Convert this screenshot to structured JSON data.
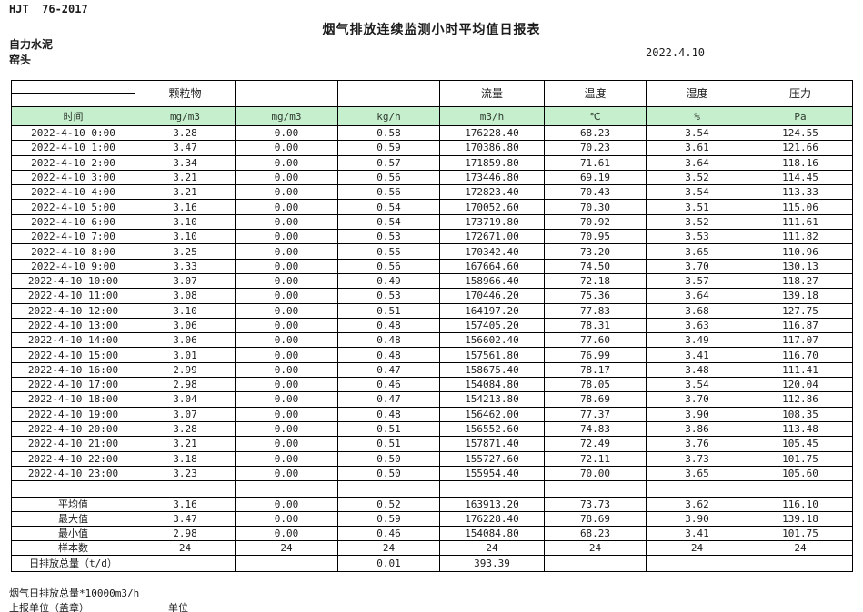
{
  "page": {
    "doc_code": "HJT  76-2017",
    "title": "烟气排放连续监测小时平均值日报表",
    "company": "自力水泥",
    "monitor_point": "窑头",
    "date": "2022.4.10"
  },
  "colors": {
    "header_green": "#c6efce",
    "border": "#000000"
  },
  "table": {
    "group_headers": [
      "",
      "颗粒物",
      "",
      "",
      "流量",
      "温度",
      "湿度",
      "压力"
    ],
    "unit_row": [
      "时间",
      "mg/m3",
      "mg/m3",
      "kg/h",
      "m3/h",
      "℃",
      "%",
      "Pa"
    ],
    "rows": [
      [
        "2022-4-10 0:00",
        "3.28",
        "0.00",
        "0.58",
        "176228.40",
        "68.23",
        "3.54",
        "124.55"
      ],
      [
        "2022-4-10 1:00",
        "3.47",
        "0.00",
        "0.59",
        "170386.80",
        "70.23",
        "3.61",
        "121.66"
      ],
      [
        "2022-4-10 2:00",
        "3.34",
        "0.00",
        "0.57",
        "171859.80",
        "71.61",
        "3.64",
        "118.16"
      ],
      [
        "2022-4-10 3:00",
        "3.21",
        "0.00",
        "0.56",
        "173446.80",
        "69.19",
        "3.52",
        "114.45"
      ],
      [
        "2022-4-10 4:00",
        "3.21",
        "0.00",
        "0.56",
        "172823.40",
        "70.43",
        "3.54",
        "113.33"
      ],
      [
        "2022-4-10 5:00",
        "3.16",
        "0.00",
        "0.54",
        "170052.60",
        "70.30",
        "3.51",
        "115.06"
      ],
      [
        "2022-4-10 6:00",
        "3.10",
        "0.00",
        "0.54",
        "173719.80",
        "70.92",
        "3.52",
        "111.61"
      ],
      [
        "2022-4-10 7:00",
        "3.10",
        "0.00",
        "0.53",
        "172671.00",
        "70.95",
        "3.53",
        "111.82"
      ],
      [
        "2022-4-10 8:00",
        "3.25",
        "0.00",
        "0.55",
        "170342.40",
        "73.20",
        "3.65",
        "110.96"
      ],
      [
        "2022-4-10 9:00",
        "3.33",
        "0.00",
        "0.56",
        "167664.60",
        "74.50",
        "3.70",
        "130.13"
      ],
      [
        "2022-4-10 10:00",
        "3.07",
        "0.00",
        "0.49",
        "158966.40",
        "72.18",
        "3.57",
        "118.27"
      ],
      [
        "2022-4-10 11:00",
        "3.08",
        "0.00",
        "0.53",
        "170446.20",
        "75.36",
        "3.64",
        "139.18"
      ],
      [
        "2022-4-10 12:00",
        "3.10",
        "0.00",
        "0.51",
        "164197.20",
        "77.83",
        "3.68",
        "127.75"
      ],
      [
        "2022-4-10 13:00",
        "3.06",
        "0.00",
        "0.48",
        "157405.20",
        "78.31",
        "3.63",
        "116.87"
      ],
      [
        "2022-4-10 14:00",
        "3.06",
        "0.00",
        "0.48",
        "156602.40",
        "77.60",
        "3.49",
        "117.07"
      ],
      [
        "2022-4-10 15:00",
        "3.01",
        "0.00",
        "0.48",
        "157561.80",
        "76.99",
        "3.41",
        "116.70"
      ],
      [
        "2022-4-10 16:00",
        "2.99",
        "0.00",
        "0.47",
        "158675.40",
        "78.17",
        "3.48",
        "111.41"
      ],
      [
        "2022-4-10 17:00",
        "2.98",
        "0.00",
        "0.46",
        "154084.80",
        "78.05",
        "3.54",
        "120.04"
      ],
      [
        "2022-4-10 18:00",
        "3.04",
        "0.00",
        "0.47",
        "154213.80",
        "78.69",
        "3.70",
        "112.86"
      ],
      [
        "2022-4-10 19:00",
        "3.07",
        "0.00",
        "0.48",
        "156462.00",
        "77.37",
        "3.90",
        "108.35"
      ],
      [
        "2022-4-10 20:00",
        "3.28",
        "0.00",
        "0.51",
        "156552.60",
        "74.83",
        "3.86",
        "113.48"
      ],
      [
        "2022-4-10 21:00",
        "3.21",
        "0.00",
        "0.51",
        "157871.40",
        "72.49",
        "3.76",
        "105.45"
      ],
      [
        "2022-4-10 22:00",
        "3.18",
        "0.00",
        "0.50",
        "155727.60",
        "72.11",
        "3.73",
        "101.75"
      ],
      [
        "2022-4-10 23:00",
        "3.23",
        "0.00",
        "0.50",
        "155954.40",
        "70.00",
        "3.65",
        "105.60"
      ]
    ],
    "summary": [
      {
        "label": "平均值",
        "values": [
          "3.16",
          "0.00",
          "0.52",
          "163913.20",
          "73.73",
          "3.62",
          "116.10"
        ]
      },
      {
        "label": "最大值",
        "values": [
          "3.47",
          "0.00",
          "0.59",
          "176228.40",
          "78.69",
          "3.90",
          "139.18"
        ]
      },
      {
        "label": "最小值",
        "values": [
          "2.98",
          "0.00",
          "0.46",
          "154084.80",
          "68.23",
          "3.41",
          "101.75"
        ]
      },
      {
        "label": "样本数",
        "values": [
          "24",
          "24",
          "24",
          "24",
          "24",
          "24",
          "24"
        ]
      },
      {
        "label": "日排放总量（t/d）",
        "values": [
          "",
          "",
          "0.01",
          "393.39",
          "",
          "",
          ""
        ]
      }
    ]
  },
  "footer": {
    "note": "烟气日排放总量*10000m3/h",
    "report_unit": "上报单位（盖章）",
    "unit_label": "单位"
  }
}
